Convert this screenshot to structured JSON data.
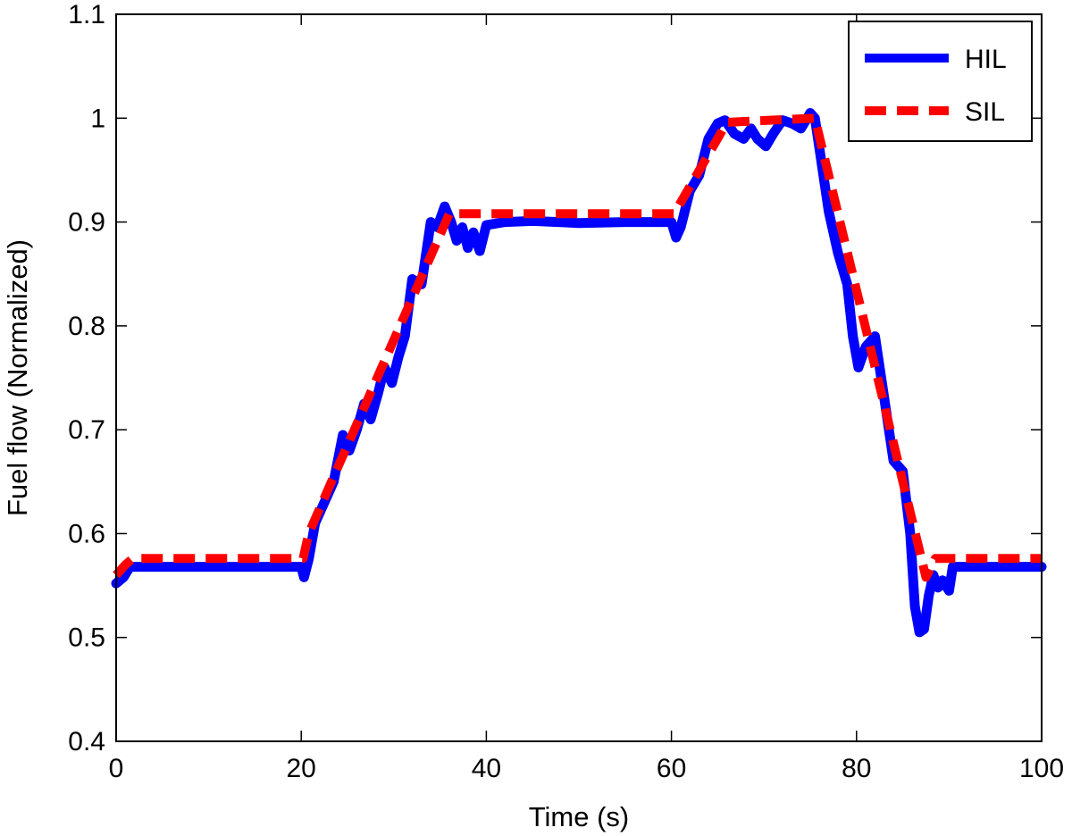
{
  "chart_data": {
    "type": "line",
    "title": "",
    "xlabel": "Time (s)",
    "ylabel": "Fuel flow (Normalized)",
    "xlim": [
      0,
      100
    ],
    "ylim": [
      0.4,
      1.1
    ],
    "xticks": [
      0,
      20,
      40,
      60,
      80,
      100
    ],
    "yticks": [
      0.4,
      0.5,
      0.6,
      0.7,
      0.8,
      0.9,
      1.0,
      1.1
    ],
    "xtick_labels": [
      "0",
      "20",
      "40",
      "60",
      "80",
      "100"
    ],
    "ytick_labels": [
      "0.4",
      "0.5",
      "0.6",
      "0.7",
      "0.8",
      "0.9",
      "1",
      "1.1"
    ],
    "grid": false,
    "legend_position": "top-right",
    "series": [
      {
        "name": "HIL",
        "color": "#0000ff",
        "style": "solid",
        "points": [
          [
            0,
            0.552
          ],
          [
            0.8,
            0.558
          ],
          [
            1.5,
            0.568
          ],
          [
            20,
            0.568
          ],
          [
            20.3,
            0.558
          ],
          [
            20.8,
            0.575
          ],
          [
            21.5,
            0.61
          ],
          [
            22.5,
            0.63
          ],
          [
            23.5,
            0.65
          ],
          [
            24.5,
            0.695
          ],
          [
            25.2,
            0.68
          ],
          [
            26,
            0.7
          ],
          [
            26.8,
            0.725
          ],
          [
            27.5,
            0.71
          ],
          [
            28.3,
            0.735
          ],
          [
            29,
            0.76
          ],
          [
            29.8,
            0.745
          ],
          [
            30.5,
            0.77
          ],
          [
            31.2,
            0.79
          ],
          [
            32,
            0.845
          ],
          [
            33,
            0.84
          ],
          [
            34,
            0.9
          ],
          [
            34.7,
            0.895
          ],
          [
            35.5,
            0.915
          ],
          [
            36.2,
            0.9
          ],
          [
            36.8,
            0.882
          ],
          [
            37.4,
            0.895
          ],
          [
            38,
            0.875
          ],
          [
            38.6,
            0.89
          ],
          [
            39.3,
            0.872
          ],
          [
            40,
            0.897
          ],
          [
            42,
            0.9
          ],
          [
            45,
            0.901
          ],
          [
            50,
            0.899
          ],
          [
            55,
            0.9
          ],
          [
            60,
            0.9
          ],
          [
            60.5,
            0.885
          ],
          [
            61,
            0.895
          ],
          [
            62,
            0.93
          ],
          [
            63,
            0.945
          ],
          [
            64,
            0.98
          ],
          [
            65,
            0.995
          ],
          [
            65.8,
            0.998
          ],
          [
            66.8,
            0.985
          ],
          [
            67.8,
            0.98
          ],
          [
            68.6,
            0.99
          ],
          [
            69.3,
            0.98
          ],
          [
            70.2,
            0.973
          ],
          [
            71,
            0.985
          ],
          [
            72,
            0.998
          ],
          [
            73,
            0.995
          ],
          [
            74,
            0.99
          ],
          [
            75,
            1.005
          ],
          [
            75.5,
            1.0
          ],
          [
            76,
            0.97
          ],
          [
            77,
            0.91
          ],
          [
            78,
            0.87
          ],
          [
            79,
            0.84
          ],
          [
            79.6,
            0.79
          ],
          [
            80.2,
            0.76
          ],
          [
            81,
            0.78
          ],
          [
            82,
            0.79
          ],
          [
            83,
            0.73
          ],
          [
            84,
            0.67
          ],
          [
            85,
            0.66
          ],
          [
            85.8,
            0.6
          ],
          [
            86.3,
            0.53
          ],
          [
            86.8,
            0.505
          ],
          [
            87.3,
            0.508
          ],
          [
            87.8,
            0.54
          ],
          [
            88.3,
            0.56
          ],
          [
            88.8,
            0.548
          ],
          [
            89.3,
            0.555
          ],
          [
            90,
            0.545
          ],
          [
            90.4,
            0.568
          ],
          [
            100,
            0.568
          ]
        ]
      },
      {
        "name": "SIL",
        "color": "#ff0000",
        "style": "dashed",
        "points": [
          [
            0,
            0.56
          ],
          [
            1,
            0.57
          ],
          [
            1.8,
            0.576
          ],
          [
            20.2,
            0.576
          ],
          [
            20.8,
            0.6
          ],
          [
            36,
            0.908
          ],
          [
            60.3,
            0.908
          ],
          [
            66,
            0.996
          ],
          [
            75.5,
            1.0
          ],
          [
            87.5,
            0.558
          ],
          [
            88.5,
            0.576
          ],
          [
            100,
            0.576
          ]
        ]
      }
    ]
  }
}
